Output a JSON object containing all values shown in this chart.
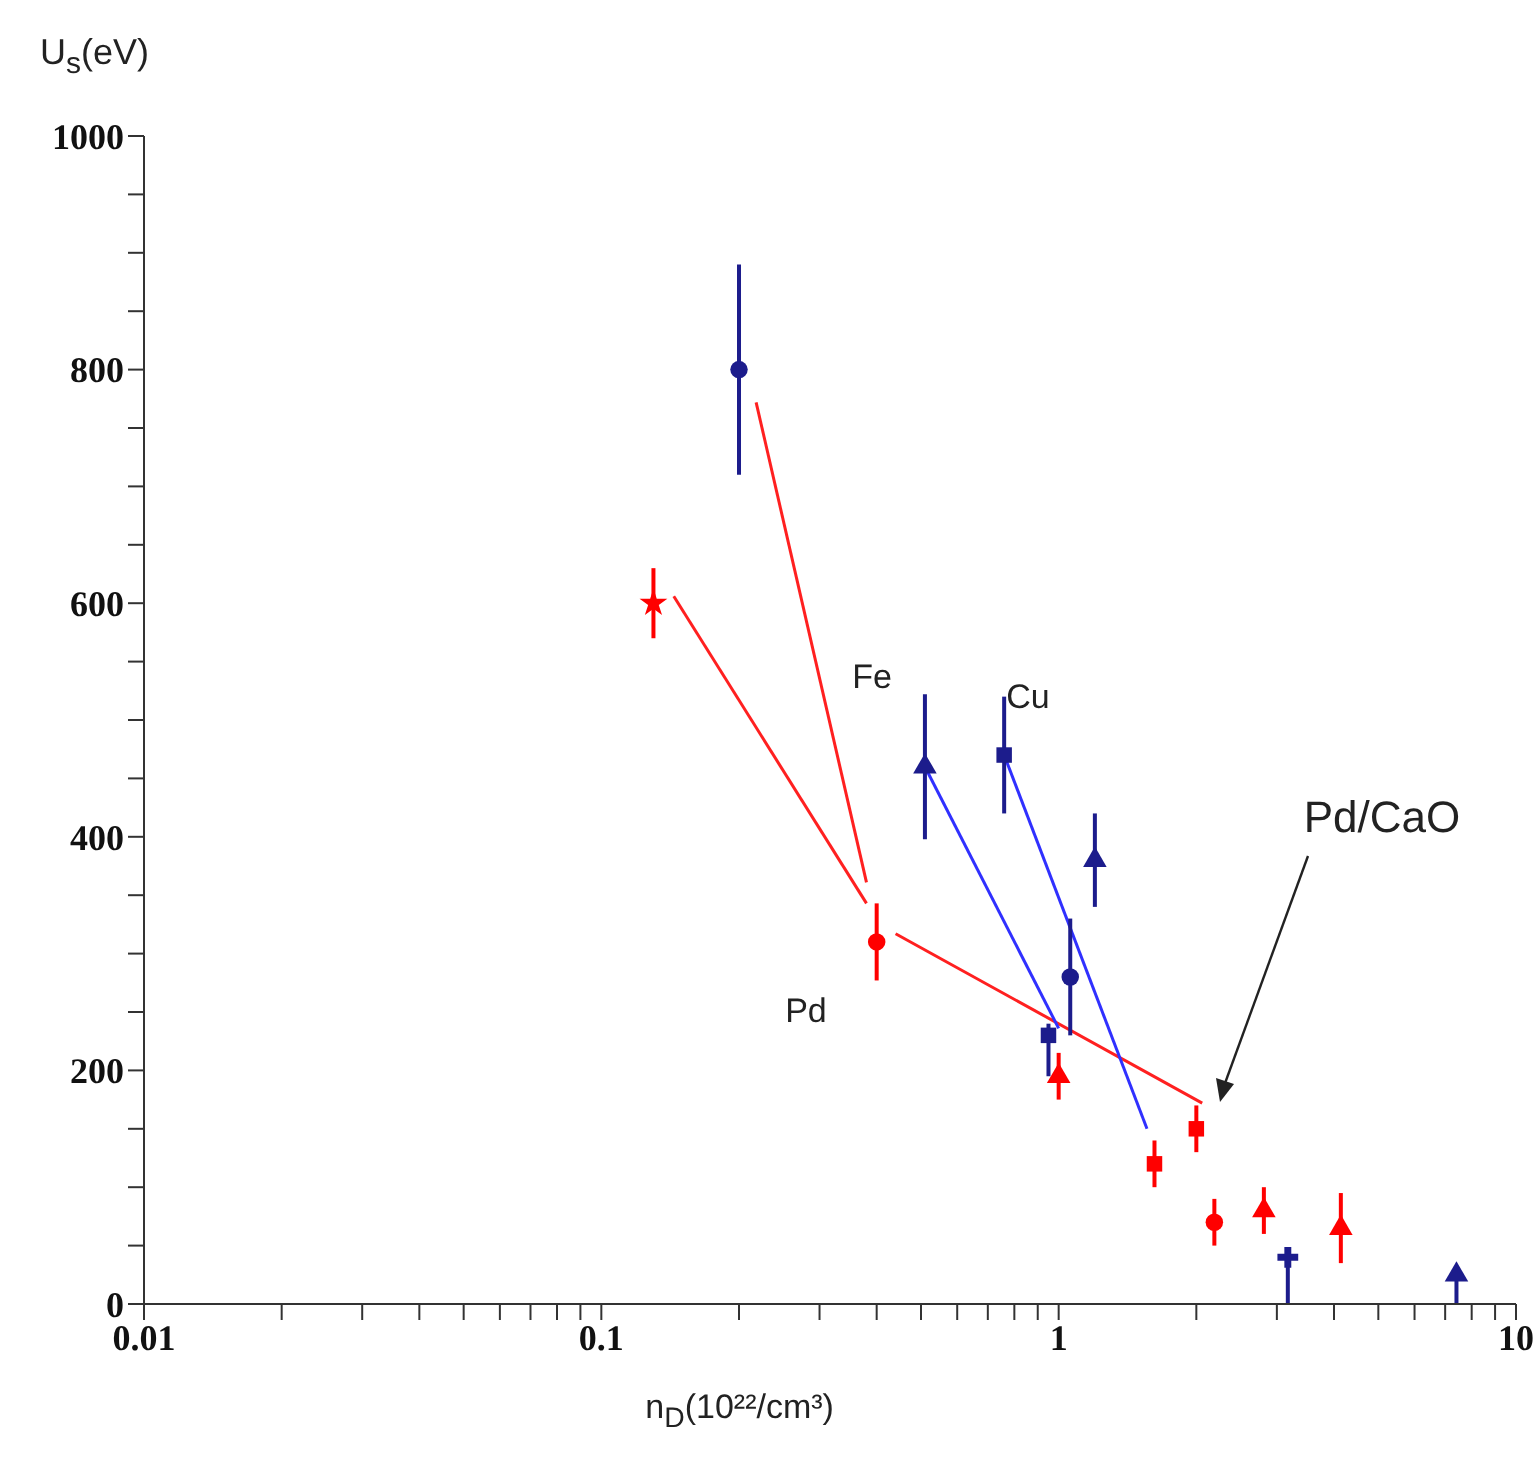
{
  "chart_data": {
    "type": "scatter",
    "xlabel": "n$_{D}$(10²²/cm³)",
    "ylabel": "U$_{s}$(eV)",
    "log": "x",
    "xlim": [
      0.01,
      10
    ],
    "xticks": [
      0.01,
      {
        "value": 0.02,
        "label": null
      },
      {
        "value": 0.03,
        "label": null
      },
      {
        "value": 0.04,
        "label": null
      },
      {
        "value": 0.05,
        "label": null
      },
      {
        "value": 0.06,
        "label": null
      },
      {
        "value": 0.07,
        "label": null
      },
      {
        "value": 0.08,
        "label": null
      },
      {
        "value": 0.09,
        "label": null
      },
      0.1,
      {
        "value": 0.2,
        "label": null
      },
      {
        "value": 0.3,
        "label": null
      },
      {
        "value": 0.4,
        "label": null
      },
      {
        "value": 0.5,
        "label": null
      },
      {
        "value": 0.6,
        "label": null
      },
      {
        "value": 0.7,
        "label": null
      },
      {
        "value": 0.8,
        "label": null
      },
      {
        "value": 0.9,
        "label": null
      },
      1,
      {
        "value": 2,
        "label": null
      },
      {
        "value": 3,
        "label": null
      },
      {
        "value": 4,
        "label": null
      },
      {
        "value": 5,
        "label": null
      },
      {
        "value": 6,
        "label": null
      },
      {
        "value": 7,
        "label": null
      },
      {
        "value": 8,
        "label": null
      },
      {
        "value": 9,
        "label": null
      },
      10
    ],
    "ylim": [
      0,
      1000
    ],
    "yticks": [
      0,
      {
        "value": 50,
        "label": null
      },
      {
        "value": 100,
        "label": null
      },
      {
        "value": 150,
        "label": null
      },
      200,
      {
        "value": 250,
        "label": null
      },
      {
        "value": 300,
        "label": null
      },
      {
        "value": 350,
        "label": null
      },
      400,
      {
        "value": 450,
        "label": null
      },
      {
        "value": 500,
        "label": null
      },
      {
        "value": 550,
        "label": null
      },
      600,
      {
        "value": 650,
        "label": null
      },
      {
        "value": 700,
        "label": null
      },
      {
        "value": 750,
        "label": null
      },
      800,
      {
        "value": 850,
        "label": null
      },
      {
        "value": 900,
        "label": null
      },
      {
        "value": 950,
        "label": null
      },
      1000
    ],
    "series": [
      {
        "type": "line",
        "color": "#ff2020",
        "x": [
          0.144,
          0.38
        ],
        "values": [
          606,
          343
        ]
      },
      {
        "type": "line",
        "color": "#ff2020",
        "x": [
          0.218,
          0.38
        ],
        "values": [
          772,
          361
        ]
      },
      {
        "type": "line",
        "color": "#ff2020",
        "x": [
          0.44,
          2.06
        ],
        "values": [
          317,
          172
        ]
      },
      {
        "type": "line",
        "color": "#3030ff",
        "x": [
          0.51,
          1.0
        ],
        "values": [
          460,
          236
        ]
      },
      {
        "type": "line",
        "color": "#3030ff",
        "x": [
          0.76,
          1.56
        ],
        "values": [
          470,
          150
        ]
      },
      {
        "type": "scatter",
        "marker": "circle",
        "color": "#1c1c8c",
        "x": [
          0.2
        ],
        "values": [
          800
        ],
        "errors": [
          90
        ]
      },
      {
        "type": "scatter",
        "marker": "star",
        "color": "#ff0000",
        "x": [
          0.13
        ],
        "values": [
          600
        ],
        "errors": [
          30
        ]
      },
      {
        "type": "scatter",
        "marker": "circle",
        "color": "#ff0000",
        "x": [
          0.4
        ],
        "values": [
          310
        ],
        "errors": [
          33
        ]
      },
      {
        "type": "scatter",
        "marker": "triangle",
        "color": "#1c1c8c",
        "x": [
          0.51
        ],
        "values": [
          460
        ],
        "errors": [
          62
        ]
      },
      {
        "type": "scatter",
        "marker": "square",
        "color": "#1c1c8c",
        "x": [
          0.76
        ],
        "values": [
          470
        ],
        "errors": [
          50
        ]
      },
      {
        "type": "scatter",
        "marker": "triangle",
        "color": "#1c1c8c",
        "x": [
          1.2
        ],
        "values": [
          380
        ],
        "errors": [
          40
        ]
      },
      {
        "type": "scatter",
        "marker": "circle",
        "color": "#1c1c8c",
        "x": [
          1.06
        ],
        "values": [
          280
        ],
        "errors": [
          50
        ]
      },
      {
        "type": "scatter",
        "marker": "square",
        "color": "#1c1c8c",
        "x": [
          0.95
        ],
        "values": [
          230
        ],
        "errors": [
          [
            195,
            240
          ]
        ]
      },
      {
        "type": "scatter",
        "marker": "triangle",
        "color": "#ff0000",
        "x": [
          1.0
        ],
        "values": [
          195
        ],
        "errors": [
          [
            175,
            215
          ]
        ]
      },
      {
        "type": "scatter",
        "marker": "square",
        "color": "#ff0000",
        "x": [
          1.62
        ],
        "values": [
          120
        ],
        "errors": [
          20
        ]
      },
      {
        "type": "scatter",
        "marker": "square",
        "color": "#ff0000",
        "x": [
          2.0
        ],
        "values": [
          150
        ],
        "errors": [
          20
        ]
      },
      {
        "type": "scatter",
        "marker": "circle",
        "color": "#ff0000",
        "x": [
          2.19
        ],
        "values": [
          70
        ],
        "errors": [
          20
        ]
      },
      {
        "type": "scatter",
        "marker": "triangle",
        "color": "#ff0000",
        "x": [
          2.81
        ],
        "values": [
          80
        ],
        "errors": [
          20
        ]
      },
      {
        "type": "scatter",
        "marker": "cross",
        "color": "#1c1c8c",
        "x": [
          3.17
        ],
        "values": [
          40
        ],
        "errors": [
          [
            0,
            45
          ]
        ]
      },
      {
        "type": "scatter",
        "marker": "triangle",
        "color": "#ff0000",
        "x": [
          4.14
        ],
        "values": [
          65
        ],
        "errors": [
          30
        ]
      },
      {
        "type": "scatter",
        "marker": "triangle",
        "color": "#1c1c8c",
        "x": [
          7.41
        ],
        "values": [
          25
        ],
        "errors": [
          [
            0,
            30
          ]
        ]
      }
    ],
    "annotations": [
      "Fe",
      "Cu",
      "Pd",
      "Pd/CaO"
    ]
  }
}
